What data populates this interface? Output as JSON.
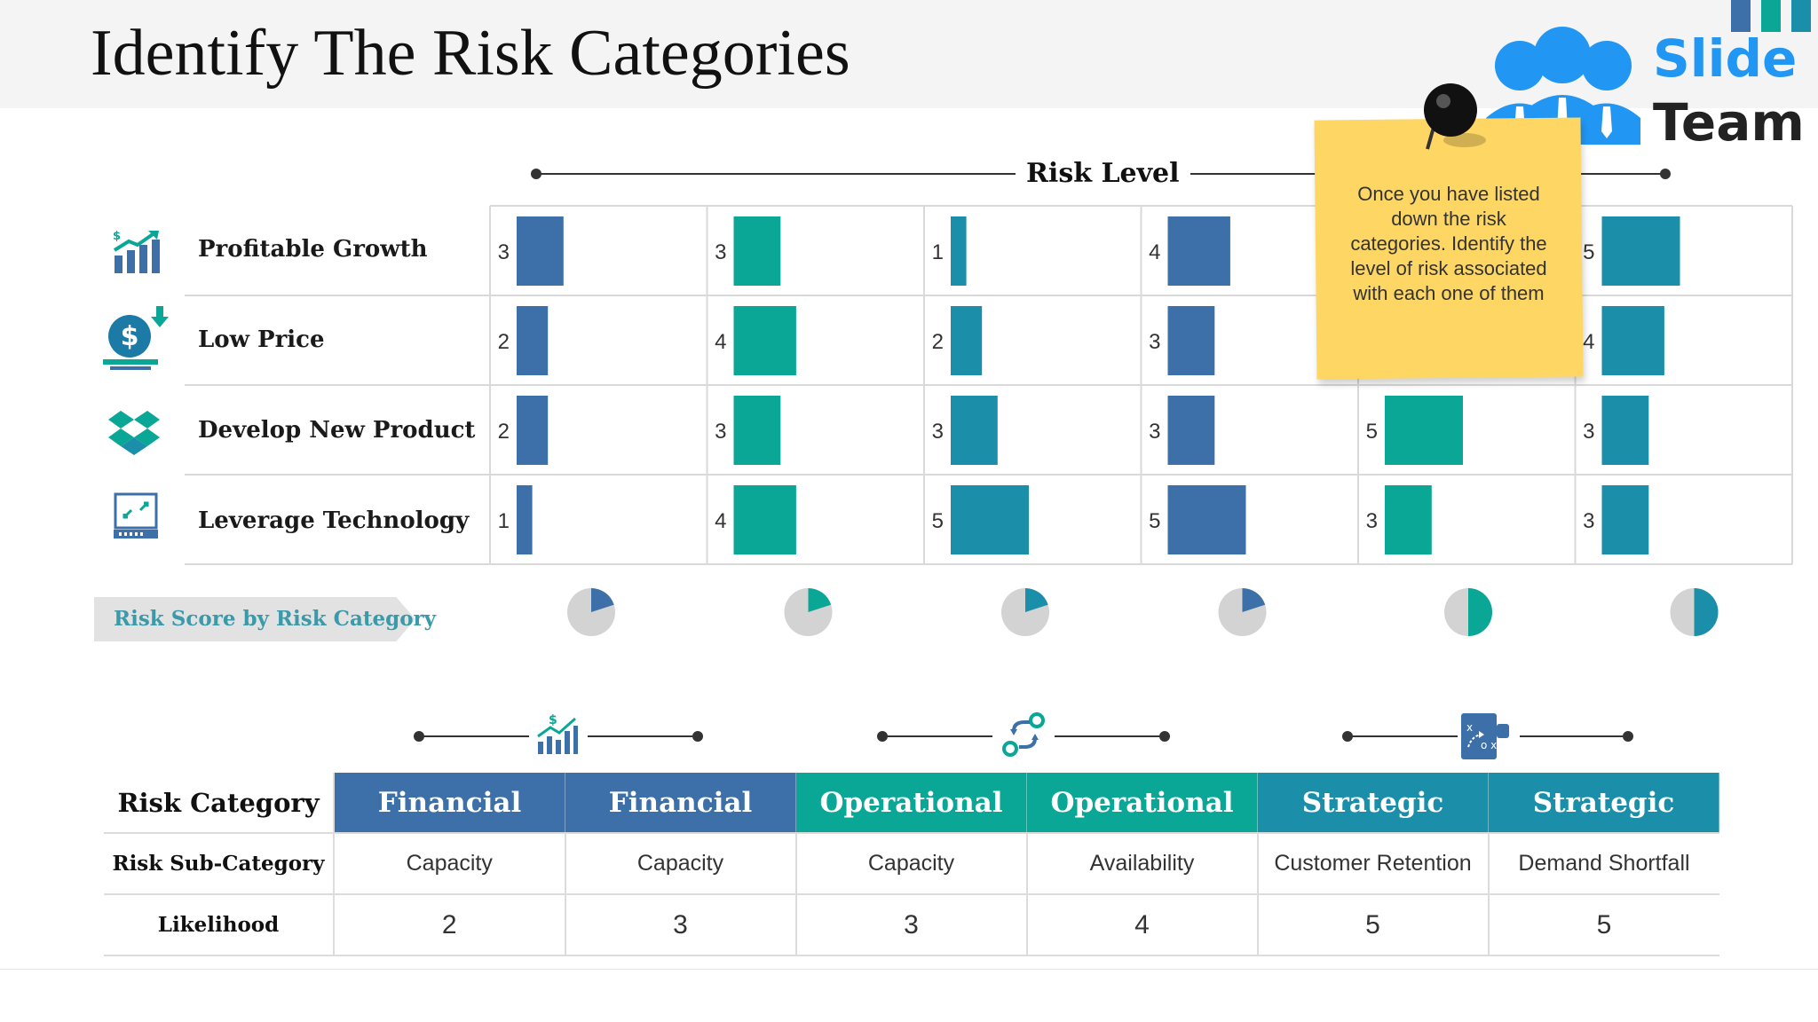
{
  "title": "Identify The Risk Categories",
  "logo": {
    "word1": "Slide",
    "word2": "Team"
  },
  "risk_level_label": "Risk Level",
  "sticky_note": "Once you have listed down the risk categories. Identify the level of risk associated with each one of them",
  "risk_score_label": "Risk Score by Risk Category",
  "colors": {
    "blue": "#3d6fa8",
    "teal": "#0aa796",
    "cyan": "#1b8faa",
    "pie_base": "#d3d3d3",
    "note": "#fdd663"
  },
  "rows": [
    {
      "label": "Profitable Growth",
      "icon": "growth-chart-icon"
    },
    {
      "label": "Low Price",
      "icon": "money-down-icon"
    },
    {
      "label": "Develop New Product",
      "icon": "product-box-icon"
    },
    {
      "label": "Leverage Technology",
      "icon": "tech-device-icon"
    }
  ],
  "chart_data": {
    "type": "bar",
    "orientation": "horizontal",
    "columns": 6,
    "column_colors": [
      "#3d6fa8",
      "#0aa796",
      "#1b8faa",
      "#3d6fa8",
      "#0aa796",
      "#1b8faa"
    ],
    "row_categories": [
      "Profitable Growth",
      "Low Price",
      "Develop New Product",
      "Leverage Technology"
    ],
    "values": [
      [
        3,
        3,
        1,
        4,
        null,
        5
      ],
      [
        2,
        4,
        2,
        3,
        null,
        4
      ],
      [
        2,
        3,
        3,
        3,
        5,
        3
      ],
      [
        1,
        4,
        5,
        5,
        3,
        3
      ]
    ],
    "xlim": [
      0,
      5
    ],
    "pies": [
      0.2,
      0.2,
      0.2,
      0.2,
      0.5,
      0.5
    ]
  },
  "group_icons": [
    "financial-chart-icon",
    "operations-gears-icon",
    "strategy-plan-icon"
  ],
  "table": {
    "row_labels": [
      "Risk Category",
      "Risk Sub-Category",
      "Likelihood"
    ],
    "categories": [
      "Financial",
      "Financial",
      "Operational",
      "Operational",
      "Strategic",
      "Strategic"
    ],
    "subcategories": [
      "Capacity",
      "Capacity",
      "Capacity",
      "Availability",
      "Customer Retention",
      "Demand Shortfall"
    ],
    "likelihood": [
      "2",
      "3",
      "3",
      "4",
      "5",
      "5"
    ]
  }
}
